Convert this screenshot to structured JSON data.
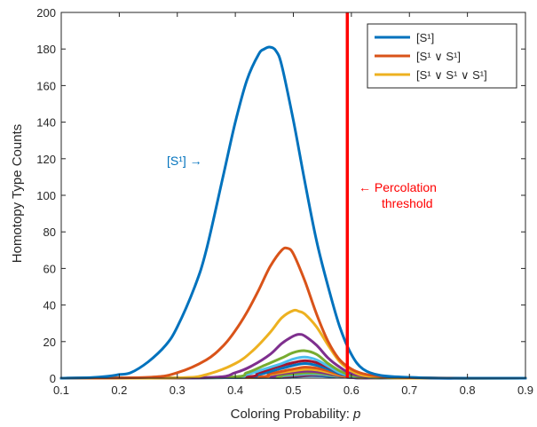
{
  "chart_data": {
    "type": "line",
    "xlabel": "Coloring Probability: ",
    "xlabel_var": "p",
    "ylabel": "Homotopy Type Counts",
    "xlim": [
      0.1,
      0.9
    ],
    "ylim": [
      0,
      200
    ],
    "xticks": [
      "0.1",
      "0.2",
      "0.3",
      "0.4",
      "0.5",
      "0.6",
      "0.7",
      "0.8",
      "0.9"
    ],
    "yticks": [
      "0",
      "20",
      "40",
      "60",
      "80",
      "100",
      "120",
      "140",
      "160",
      "180",
      "200"
    ],
    "grid": false,
    "legend_position": "top-right",
    "legend": [
      {
        "label": "[S¹]",
        "color": "#0072BD"
      },
      {
        "label": "[S¹ ∨ S¹]",
        "color": "#D95319"
      },
      {
        "label": "[S¹ ∨ S¹ ∨ S¹]",
        "color": "#EDB120"
      }
    ],
    "threshold": {
      "x": 0.593,
      "color": "#FF0000"
    },
    "annotations": {
      "s1_label": "[S¹] →",
      "s1_color": "#0072BD",
      "percolation_line1": "← Percolation",
      "percolation_line2": "threshold",
      "percolation_color": "#FF0000"
    },
    "series": [
      {
        "color": "#0072BD",
        "x": [
          0.1,
          0.15,
          0.18,
          0.2,
          0.22,
          0.25,
          0.28,
          0.3,
          0.33,
          0.35,
          0.38,
          0.4,
          0.42,
          0.44,
          0.45,
          0.46,
          0.47,
          0.48,
          0.5,
          0.52,
          0.54,
          0.56,
          0.58,
          0.6,
          0.62,
          0.65,
          0.7,
          0.75,
          0.8,
          0.9
        ],
        "y": [
          0,
          0.3,
          1,
          2,
          3,
          9,
          18,
          28,
          50,
          70,
          112,
          140,
          163,
          177,
          180,
          181,
          179,
          171,
          141,
          107,
          75,
          50,
          28,
          13,
          5,
          1.5,
          0.5,
          0,
          0,
          0
        ]
      },
      {
        "color": "#D95319",
        "x": [
          0.1,
          0.25,
          0.3,
          0.35,
          0.38,
          0.4,
          0.42,
          0.44,
          0.46,
          0.48,
          0.49,
          0.5,
          0.52,
          0.54,
          0.56,
          0.58,
          0.6,
          0.62,
          0.65,
          0.7,
          0.8,
          0.9
        ],
        "y": [
          0,
          0.5,
          3,
          10,
          18,
          26,
          36,
          48,
          61,
          70,
          71,
          68,
          53,
          35,
          20,
          10,
          5,
          2.5,
          1,
          0.3,
          0,
          0
        ]
      },
      {
        "color": "#EDB120",
        "x": [
          0.1,
          0.3,
          0.35,
          0.4,
          0.43,
          0.46,
          0.48,
          0.5,
          0.51,
          0.52,
          0.54,
          0.56,
          0.58,
          0.6,
          0.62,
          0.65,
          0.7,
          0.9
        ],
        "y": [
          0,
          0.2,
          2,
          8,
          15,
          25,
          33,
          37,
          36.5,
          35,
          28,
          18,
          9,
          4,
          1.5,
          0.5,
          0,
          0
        ]
      },
      {
        "color": "#7E2F8E",
        "x": [
          0.1,
          0.35,
          0.4,
          0.43,
          0.46,
          0.48,
          0.5,
          0.51,
          0.52,
          0.54,
          0.56,
          0.58,
          0.6,
          0.63,
          0.7,
          0.9
        ],
        "y": [
          0,
          0.3,
          3,
          7,
          13,
          19,
          23,
          24,
          23,
          18,
          11,
          6,
          2.5,
          0.8,
          0,
          0
        ]
      },
      {
        "color": "#77AC30",
        "x": [
          0.1,
          0.38,
          0.42,
          0.45,
          0.48,
          0.5,
          0.52,
          0.54,
          0.56,
          0.58,
          0.6,
          0.63,
          0.7,
          0.9
        ],
        "y": [
          0,
          0.5,
          3,
          7,
          11,
          14,
          15,
          13,
          8,
          4,
          1.5,
          0.5,
          0,
          0
        ]
      },
      {
        "color": "#4DBEEE",
        "x": [
          0.1,
          0.38,
          0.42,
          0.45,
          0.48,
          0.5,
          0.52,
          0.54,
          0.56,
          0.58,
          0.6,
          0.63,
          0.7,
          0.9
        ],
        "y": [
          0,
          0.3,
          2,
          5,
          8,
          10.5,
          11.5,
          10,
          6.5,
          3,
          1.2,
          0.4,
          0,
          0
        ]
      },
      {
        "color": "#A2142F",
        "x": [
          0.1,
          0.4,
          0.44,
          0.47,
          0.5,
          0.52,
          0.54,
          0.56,
          0.58,
          0.6,
          0.63,
          0.7,
          0.9
        ],
        "y": [
          0,
          0.5,
          3,
          6,
          8.5,
          9.5,
          8.5,
          6,
          3,
          1.2,
          0.4,
          0,
          0
        ]
      },
      {
        "color": "#0072BD",
        "x": [
          0.1,
          0.4,
          0.44,
          0.47,
          0.5,
          0.52,
          0.54,
          0.56,
          0.58,
          0.6,
          0.63,
          0.7,
          0.9
        ],
        "y": [
          0,
          0.3,
          2,
          4.5,
          7,
          8,
          7,
          5,
          2.5,
          1,
          0.3,
          0,
          0
        ]
      },
      {
        "color": "#D95319",
        "x": [
          0.1,
          0.42,
          0.46,
          0.5,
          0.52,
          0.54,
          0.56,
          0.58,
          0.6,
          0.63,
          0.7,
          0.9
        ],
        "y": [
          0,
          0.5,
          2.5,
          5,
          6,
          5.5,
          4,
          2,
          0.8,
          0.3,
          0,
          0
        ]
      },
      {
        "color": "#EDB120",
        "x": [
          0.1,
          0.42,
          0.46,
          0.5,
          0.52,
          0.54,
          0.56,
          0.58,
          0.6,
          0.63,
          0.7,
          0.9
        ],
        "y": [
          0,
          0.3,
          2,
          4,
          4.8,
          4.5,
          3.2,
          1.6,
          0.6,
          0.2,
          0,
          0
        ]
      },
      {
        "color": "#7E2F8E",
        "x": [
          0.1,
          0.43,
          0.47,
          0.5,
          0.52,
          0.54,
          0.56,
          0.58,
          0.6,
          0.65,
          0.9
        ],
        "y": [
          0,
          0.4,
          2,
          3.2,
          3.8,
          3.5,
          2.5,
          1.2,
          0.4,
          0,
          0
        ]
      },
      {
        "color": "#77AC30",
        "x": [
          0.1,
          0.44,
          0.48,
          0.51,
          0.53,
          0.55,
          0.57,
          0.6,
          0.65,
          0.9
        ],
        "y": [
          0,
          0.4,
          1.6,
          2.6,
          2.9,
          2.5,
          1.5,
          0.4,
          0,
          0
        ]
      },
      {
        "color": "#4DBEEE",
        "x": [
          0.1,
          0.44,
          0.48,
          0.51,
          0.53,
          0.55,
          0.57,
          0.6,
          0.65,
          0.9
        ],
        "y": [
          0,
          0.3,
          1.2,
          2,
          2.3,
          2,
          1.2,
          0.3,
          0,
          0
        ]
      },
      {
        "color": "#A2142F",
        "x": [
          0.1,
          0.45,
          0.49,
          0.52,
          0.54,
          0.56,
          0.58,
          0.61,
          0.65,
          0.9
        ],
        "y": [
          0,
          0.3,
          1,
          1.6,
          1.8,
          1.5,
          0.8,
          0.2,
          0,
          0
        ]
      },
      {
        "color": "#0072BD",
        "x": [
          0.1,
          0.46,
          0.5,
          0.53,
          0.55,
          0.57,
          0.6,
          0.65,
          0.9
        ],
        "y": [
          0,
          0.3,
          0.9,
          1.3,
          1.2,
          0.8,
          0.3,
          0,
          0
        ]
      }
    ]
  }
}
